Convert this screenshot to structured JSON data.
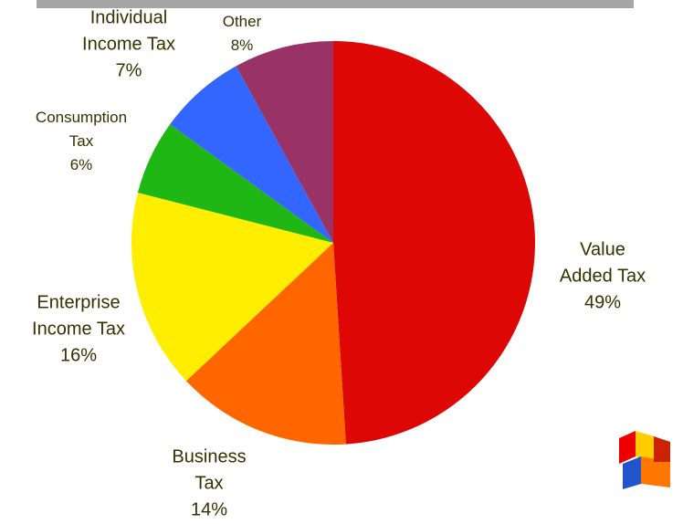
{
  "chart_data": {
    "type": "pie",
    "title": "",
    "slices": [
      {
        "name": "Value Added Tax",
        "value": 49,
        "label_lines": [
          "Value",
          "Added Tax",
          "49%"
        ],
        "color": "#dd0806"
      },
      {
        "name": "Business Tax",
        "value": 14,
        "label_lines": [
          "Business",
          "Tax",
          "14%"
        ],
        "color": "#ff6600"
      },
      {
        "name": "Enterprise Income Tax",
        "value": 16,
        "label_lines": [
          "Enterprise",
          "Income Tax",
          "16%"
        ],
        "color": "#ffee00"
      },
      {
        "name": "Consumption Tax",
        "value": 6,
        "label_lines": [
          "Consumption",
          "Tax",
          "6%"
        ],
        "color": "#1fb714"
      },
      {
        "name": "Individual Income Tax",
        "value": 7,
        "label_lines": [
          "Individual",
          "Income Tax",
          "7%"
        ],
        "color": "#3366ff"
      },
      {
        "name": "Other",
        "value": 8,
        "label_lines": [
          "Other",
          "8%"
        ],
        "color": "#993366"
      }
    ]
  },
  "logo": {
    "icon": "hh-logo-icon",
    "colors": [
      "#ee0000",
      "#ffcc00",
      "#2255cc",
      "#ff7700"
    ]
  }
}
